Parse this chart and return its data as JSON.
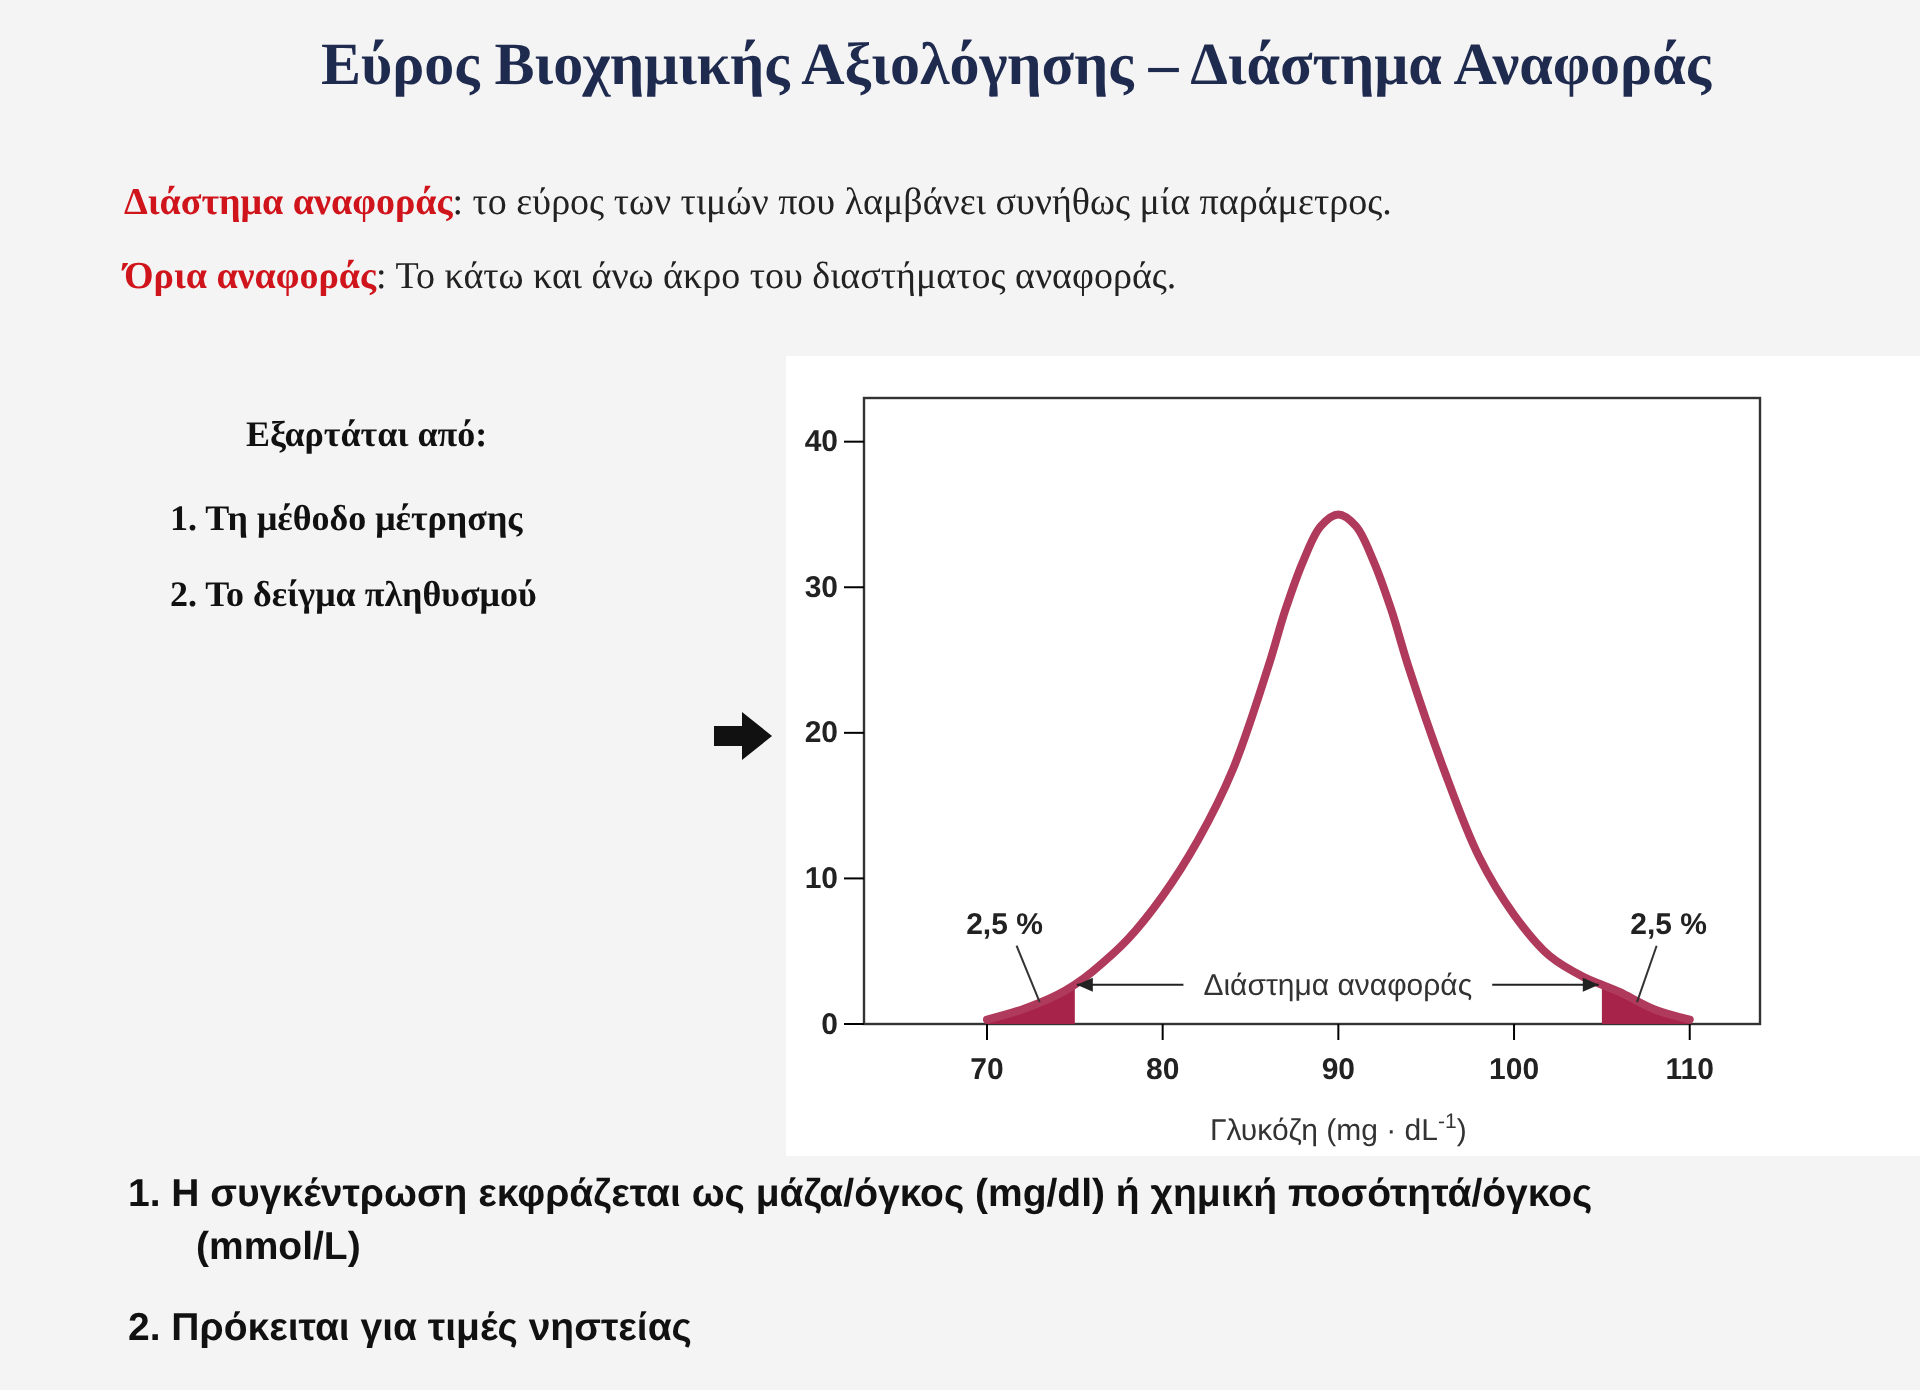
{
  "chart_data": {
    "type": "line",
    "title": "Εύρος Βιοχημικής Αξιολόγησης – Διάστημα Αναφοράς",
    "xlabel": "Γλυκόζη (mg · dL$^{-1}$)",
    "xlim": [
      63,
      114
    ],
    "ylim": [
      0,
      43
    ],
    "xticks": [
      70,
      80,
      90,
      100,
      110
    ],
    "yticks": [
      0,
      10,
      20,
      30,
      40
    ],
    "series": [
      {
        "type": "area",
        "color": "#a8234a",
        "x": [
          70,
          72,
          74,
          75
        ],
        "values": [
          0.3,
          1.0,
          2.0,
          2.7
        ]
      },
      {
        "type": "area",
        "color": "#a8234a",
        "x": [
          105,
          106,
          108,
          110
        ],
        "values": [
          2.7,
          2.2,
          1.0,
          0.3
        ]
      },
      {
        "color": "#b03a5b",
        "x": [
          70,
          72,
          74,
          75,
          76,
          78,
          80,
          82,
          84,
          86,
          87,
          88,
          89,
          90,
          91,
          92,
          93,
          94,
          96,
          98,
          100,
          102,
          104,
          105,
          106,
          108,
          110
        ],
        "values": [
          0.3,
          1.0,
          2.0,
          2.7,
          3.6,
          5.8,
          8.8,
          12.6,
          17.5,
          24.5,
          28.5,
          31.8,
          34.2,
          35,
          34.2,
          31.8,
          28.5,
          24.5,
          17.5,
          11.5,
          7.5,
          4.7,
          3.2,
          2.7,
          2.2,
          1.0,
          0.3
        ]
      }
    ],
    "annotations": [
      "Διάστημα αναφοράς",
      ": το εύρος των τιμών που λαμβάνει συνήθως μία παράμετρος.",
      "Όρια αναφοράς",
      ": Το κάτω και άνω άκρο του διαστήματος αναφοράς.",
      "Εξαρτάται από:",
      "1.   Τη μέθοδο μέτρησης",
      "2.   Το δείγμα πληθυσμού",
      "1.   Η συγκέντρωση εκφράζεται ως μάζα/όγκος (mg/dl) ή χημική ποσότητά/όγκος (mmol/L)",
      "2.   Πρόκειται για τιμές νηστείας",
      {
        "text": "2,5 %",
        "x": 73,
        "y": 1.5
      },
      {
        "text": "2,5 %",
        "x": 107,
        "y": 1.5
      },
      {
        "text": "Διάστημα αναφοράς",
        "x": 75,
        "y": 2.7
      }
    ]
  }
}
